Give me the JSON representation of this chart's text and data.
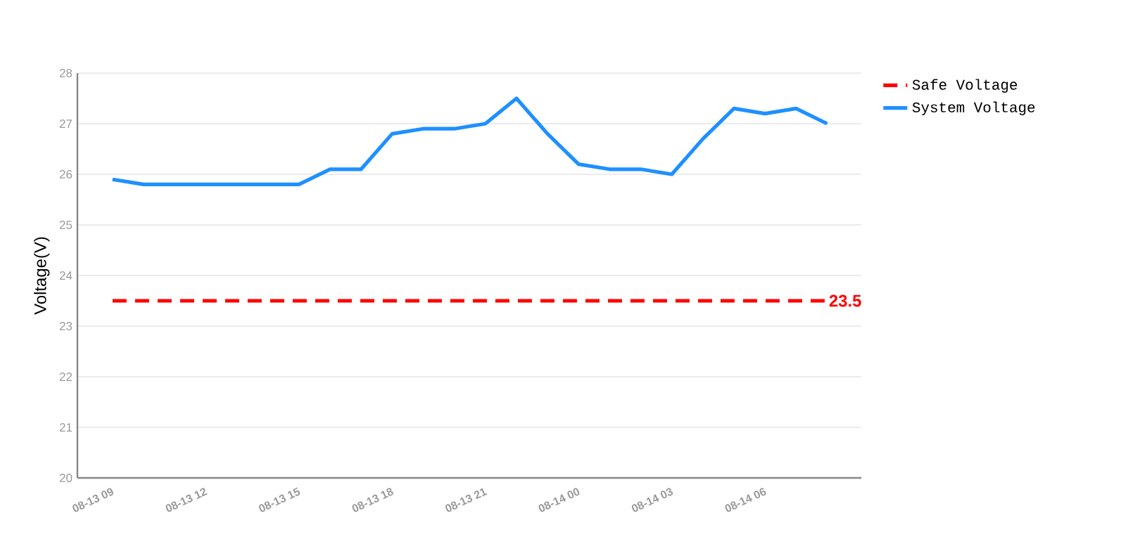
{
  "chart_data": {
    "type": "line",
    "ylabel": "Voltage(V)",
    "categories": [
      "08-13 09",
      null,
      null,
      "08-13 12",
      null,
      null,
      "08-13 15",
      null,
      null,
      "08-13 18",
      null,
      null,
      "08-13 21",
      null,
      null,
      "08-14 00",
      null,
      null,
      "08-14 03",
      null,
      null,
      "08-14 06",
      null,
      null
    ],
    "series": [
      {
        "name": "Safe Voltage",
        "color": "#ff0000",
        "line_style": "dashed",
        "values": [
          23.5,
          23.5,
          23.5,
          23.5,
          23.5,
          23.5,
          23.5,
          23.5,
          23.5,
          23.5,
          23.5,
          23.5,
          23.5,
          23.5,
          23.5,
          23.5,
          23.5,
          23.5,
          23.5,
          23.5,
          23.5,
          23.5,
          23.5,
          23.5
        ],
        "value_labels": [
          null,
          null,
          null,
          null,
          null,
          null,
          null,
          null,
          null,
          null,
          null,
          null,
          null,
          null,
          null,
          null,
          null,
          null,
          null,
          null,
          null,
          null,
          null,
          "23.5"
        ]
      },
      {
        "name": "System Voltage",
        "color": "#1e90ff",
        "line_style": "solid",
        "values": [
          25.9,
          25.8,
          25.8,
          25.8,
          25.8,
          25.8,
          25.8,
          26.1,
          26.1,
          26.8,
          26.9,
          26.9,
          27.0,
          27.5,
          26.8,
          26.2,
          26.1,
          26.1,
          26.0,
          26.7,
          27.3,
          27.2,
          27.3,
          27.0
        ]
      }
    ],
    "ylim": [
      20,
      28
    ],
    "yticks": [
      20,
      21,
      22,
      23,
      24,
      25,
      26,
      27,
      28
    ],
    "grid": "y",
    "legend": "top right",
    "marker": "none"
  }
}
